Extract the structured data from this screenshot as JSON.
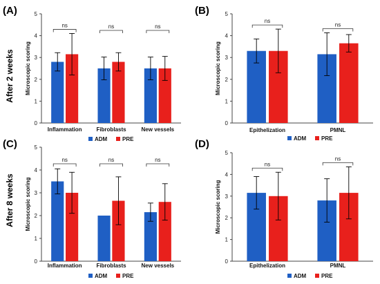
{
  "colors": {
    "ADM": "#1f5fc4",
    "PRE": "#e8201c",
    "axis": "#444444",
    "error": "#000000"
  },
  "row_labels": [
    "After 2 weeks",
    "After 8 weeks"
  ],
  "chart_data": [
    {
      "panel": "(A)",
      "type": "bar",
      "ylabel": "Microscopic scoring",
      "ylim": [
        0,
        5
      ],
      "yticks": [
        "0",
        "1",
        "2",
        "3",
        "4",
        "5"
      ],
      "categories": [
        "Inflammation",
        "Fibroblasts",
        "New vessels"
      ],
      "series": [
        {
          "name": "ADM",
          "values": [
            2.8,
            2.5,
            2.5
          ],
          "errors": [
            0.42,
            0.52,
            0.52
          ]
        },
        {
          "name": "PRE",
          "values": [
            3.15,
            2.8,
            2.5
          ],
          "errors": [
            0.95,
            0.42,
            0.55
          ]
        }
      ],
      "significance": [
        "ns",
        "ns",
        "ns"
      ],
      "legend": [
        "ADM",
        "PRE"
      ]
    },
    {
      "panel": "(B)",
      "type": "bar",
      "ylabel": "Microscopic scoring",
      "ylim": [
        0,
        5
      ],
      "yticks": [
        "0",
        "1",
        "2",
        "3",
        "4",
        "5"
      ],
      "categories": [
        "Epithelization",
        "PMNL"
      ],
      "series": [
        {
          "name": "ADM",
          "values": [
            3.3,
            3.15
          ],
          "errors": [
            0.55,
            0.98
          ]
        },
        {
          "name": "PRE",
          "values": [
            3.3,
            3.65
          ],
          "errors": [
            1.0,
            0.4
          ]
        }
      ],
      "significance": [
        "ns",
        "ns"
      ],
      "legend": [
        "ADM",
        "PRE"
      ]
    },
    {
      "panel": "(C)",
      "type": "bar",
      "ylabel": "Microscopic scoring",
      "ylim": [
        0,
        5
      ],
      "yticks": [
        "0",
        "1",
        "2",
        "3",
        "4",
        "5"
      ],
      "categories": [
        "Inflammation",
        "Fibroblasts",
        "New vessels"
      ],
      "series": [
        {
          "name": "ADM",
          "values": [
            3.5,
            2.0,
            2.15
          ],
          "errors": [
            0.55,
            0.0,
            0.4
          ]
        },
        {
          "name": "PRE",
          "values": [
            3.0,
            2.65,
            2.6
          ],
          "errors": [
            0.9,
            1.05,
            0.8
          ]
        }
      ],
      "significance": [
        "ns",
        "ns",
        "ns"
      ],
      "legend": [
        "ADM",
        "PRE"
      ]
    },
    {
      "panel": "(D)",
      "type": "bar",
      "ylabel": "Microscopic scoring",
      "ylim": [
        0,
        5
      ],
      "yticks": [
        "0",
        "1",
        "2",
        "3",
        "4",
        "5"
      ],
      "categories": [
        "Epithelization",
        "PMNL"
      ],
      "series": [
        {
          "name": "ADM",
          "values": [
            3.15,
            2.8
          ],
          "errors": [
            0.75,
            1.0
          ]
        },
        {
          "name": "PRE",
          "values": [
            3.0,
            3.15
          ],
          "errors": [
            1.1,
            1.2
          ]
        }
      ],
      "significance": [
        "ns",
        "ns"
      ],
      "legend": [
        "ADM",
        "PRE"
      ]
    }
  ]
}
